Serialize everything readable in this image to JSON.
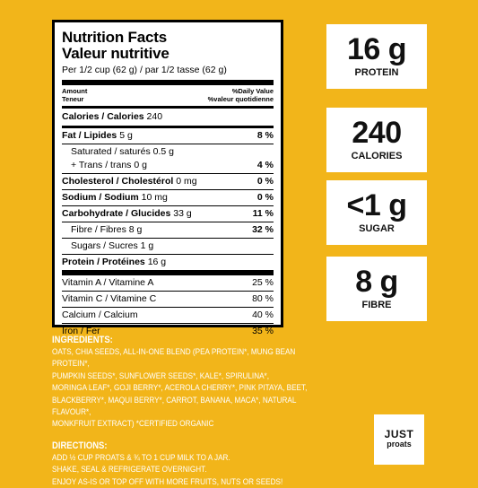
{
  "nutrition": {
    "title_en": "Nutrition Facts",
    "title_fr": "Valeur nutritive",
    "serving": "Per 1/2 cup (62 g) / par 1/2 tasse (62 g)",
    "amount_en": "Amount",
    "amount_fr": "Teneur",
    "dv_en": "%Daily Value",
    "dv_fr": "%valeur quotidienne",
    "calories_label": "Calories / Calories",
    "calories_value": "240",
    "fat_label": "Fat / Lipides",
    "fat_value": "5 g",
    "fat_pct": "8 %",
    "sat_label": "Saturated / saturés 0.5 g",
    "trans_label": "+ Trans / trans 0 g",
    "sat_trans_pct": "4 %",
    "chol_label": "Cholesterol / Cholestérol",
    "chol_value": "0 mg",
    "chol_pct": "0 %",
    "sodium_label": "Sodium / Sodium",
    "sodium_value": "10 mg",
    "sodium_pct": "0 %",
    "carb_label": "Carbohydrate / Glucides",
    "carb_value": "33 g",
    "carb_pct": "11 %",
    "fibre_label": "Fibre / Fibres 8 g",
    "fibre_pct": "32 %",
    "sugars_label": "Sugars / Sucres 1 g",
    "protein_label": "Protein / Protéines",
    "protein_value": "16 g",
    "vitamins": [
      {
        "label": "Vitamin A / Vitamine A",
        "pct": "25 %"
      },
      {
        "label": "Vitamin C / Vitamine C",
        "pct": "80 %"
      },
      {
        "label": "Calcium / Calcium",
        "pct": "40 %"
      },
      {
        "label": "Iron / Fer",
        "pct": "35 %"
      }
    ]
  },
  "stats": [
    {
      "value": "16 g",
      "label": "PROTEIN"
    },
    {
      "value": "240",
      "label": "CALORIES"
    },
    {
      "value": "<1 g",
      "label": "SUGAR"
    },
    {
      "value": "8 g",
      "label": "FIBRE"
    }
  ],
  "ingredients": {
    "heading": "INGREDIENTS:",
    "lines": [
      "OATS, CHIA SEEDS, ALL-IN-ONE BLEND (PEA PROTEIN*, MUNG BEAN PROTEIN*,",
      "PUMPKIN SEEDS*, SUNFLOWER SEEDS*, KALE*, SPIRULINA*,",
      "MORINGA LEAF*, GOJI BERRY*, ACEROLA CHERRY*, PINK PITAYA, BEET,",
      "BLACKBERRY*, MAQUI BERRY*, CARROT, BANANA, MACA*, NATURAL FLAVOUR*,",
      "MONKFRUIT EXTRACT) *CERTIFIED ORGANIC"
    ]
  },
  "directions": {
    "heading": "DIRECTIONS:",
    "lines": [
      "ADD ½ CUP PROATS & ¾ TO 1 CUP MILK TO A JAR.",
      "SHAKE, SEAL & REFRIGERATE OVERNIGHT.",
      "ENJOY AS-IS OR TOP OFF WITH MORE FRUITS, NUTS OR SEEDS!"
    ]
  },
  "logo": {
    "line1": "JUST",
    "line2": "proats"
  }
}
